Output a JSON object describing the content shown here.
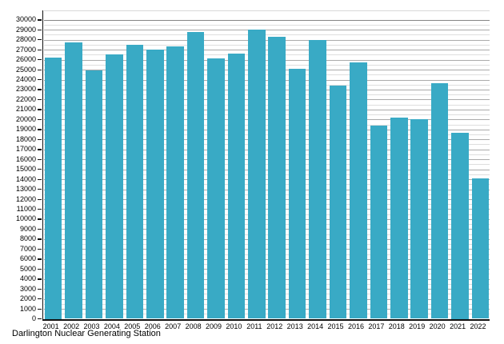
{
  "chart_data": {
    "type": "bar",
    "title": "Darlington Nuclear Generating Station",
    "categories": [
      "2001",
      "2002",
      "2003",
      "2004",
      "2005",
      "2006",
      "2007",
      "2008",
      "2009",
      "2010",
      "2011",
      "2012",
      "2013",
      "2014",
      "2015",
      "2016",
      "2017",
      "2018",
      "2019",
      "2020",
      "2021",
      "2022"
    ],
    "values": [
      26200,
      27700,
      24900,
      26500,
      27500,
      27000,
      27300,
      28800,
      26100,
      26600,
      29000,
      28300,
      25100,
      28000,
      23400,
      25700,
      19400,
      20200,
      20000,
      23600,
      18700,
      14100
    ],
    "xlabel": "",
    "ylabel": "",
    "ylim": [
      0,
      30000
    ],
    "y_major_step": 1000,
    "y_minor_step": 500,
    "grid": true,
    "legend": false,
    "colors": {
      "bar": "#39AAC5",
      "grid_major": "#ababab",
      "grid_minor": "#dedede",
      "grid_top": "#858585",
      "axis": "#111111",
      "text": "#000000"
    }
  }
}
